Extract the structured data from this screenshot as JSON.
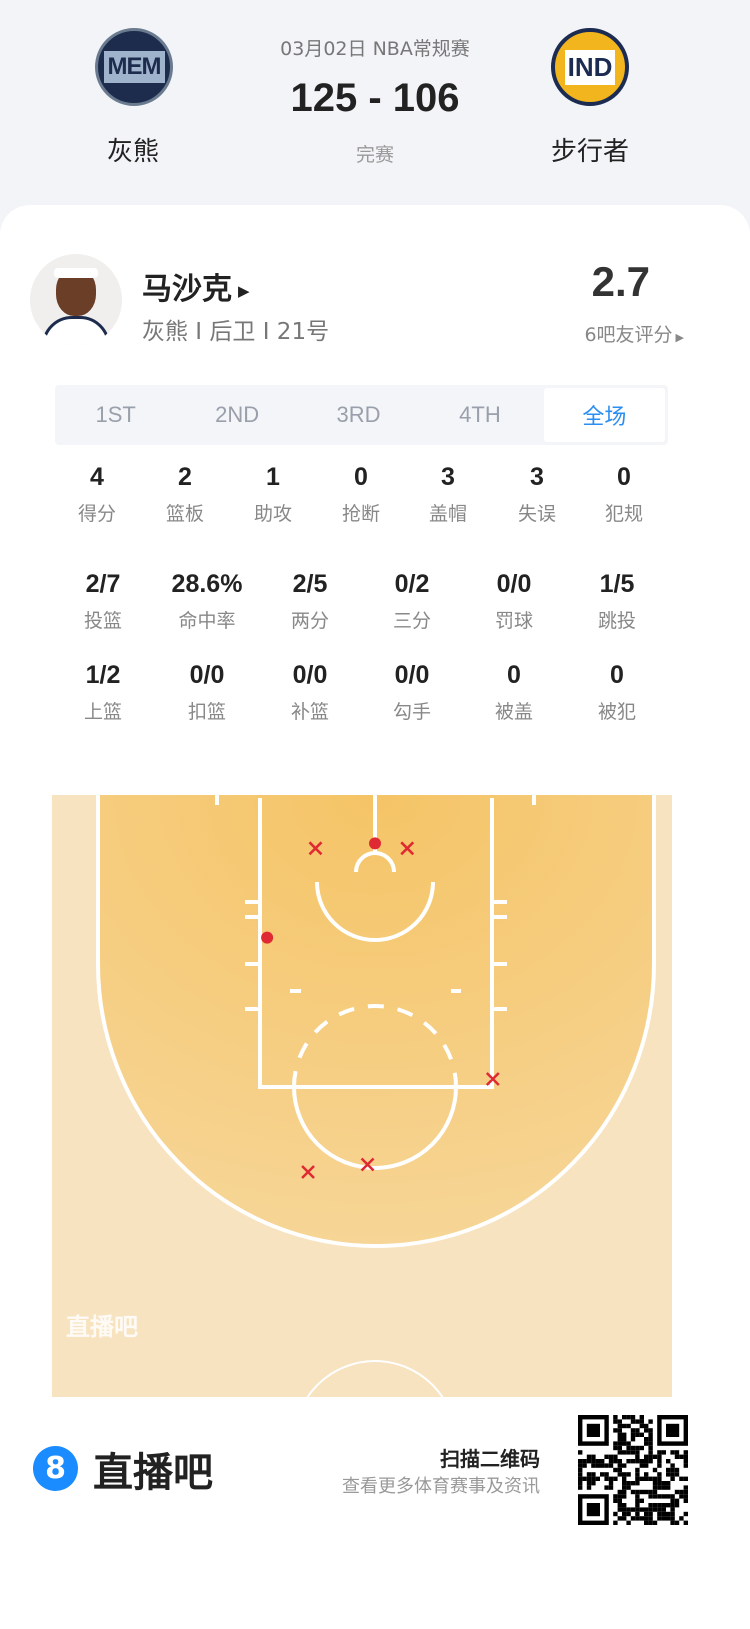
{
  "match": {
    "date_type": "03月02日 NBA常规赛",
    "score": "125 - 106",
    "status": "完赛",
    "home": {
      "logo_text": "MEM",
      "name": "灰熊"
    },
    "away": {
      "logo_text": "IND",
      "name": "步行者"
    }
  },
  "player": {
    "name": "马沙克",
    "info": "灰熊 I 后卫 I 21号",
    "rating": "2.7",
    "rating_label": "6吧友评分"
  },
  "tabs": [
    {
      "label": "1ST"
    },
    {
      "label": "2ND"
    },
    {
      "label": "3RD"
    },
    {
      "label": "4TH"
    },
    {
      "label": "全场",
      "active": true
    }
  ],
  "stats_row1": [
    {
      "v": "4",
      "l": "得分"
    },
    {
      "v": "2",
      "l": "篮板"
    },
    {
      "v": "1",
      "l": "助攻"
    },
    {
      "v": "0",
      "l": "抢断"
    },
    {
      "v": "3",
      "l": "盖帽"
    },
    {
      "v": "3",
      "l": "失误"
    },
    {
      "v": "0",
      "l": "犯规"
    }
  ],
  "stats_row2": [
    {
      "v": "2/7",
      "l": "投篮"
    },
    {
      "v": "28.6%",
      "l": "命中率"
    },
    {
      "v": "2/5",
      "l": "两分"
    },
    {
      "v": "0/2",
      "l": "三分"
    },
    {
      "v": "0/0",
      "l": "罚球"
    },
    {
      "v": "1/5",
      "l": "跳投"
    }
  ],
  "stats_row3": [
    {
      "v": "1/2",
      "l": "上篮"
    },
    {
      "v": "0/0",
      "l": "扣篮"
    },
    {
      "v": "0/0",
      "l": "补篮"
    },
    {
      "v": "0/0",
      "l": "勾手"
    },
    {
      "v": "0",
      "l": "被盖"
    },
    {
      "v": "0",
      "l": "被犯"
    }
  ],
  "shot_chart": {
    "watermark": "直播吧",
    "made_color": "#e02a33",
    "miss_color": "#e02a33",
    "shots_feet_from_center_baseline": [
      {
        "x": -4.8,
        "y": 4.3,
        "made": false
      },
      {
        "x": 0,
        "y": 3.9,
        "made": true
      },
      {
        "x": 2.6,
        "y": 4.3,
        "made": false
      },
      {
        "x": -8.7,
        "y": 11.5,
        "made": true
      },
      {
        "x": 9.5,
        "y": 22.9,
        "made": false
      },
      {
        "x": -5.4,
        "y": 30.4,
        "made": false
      },
      {
        "x": -0.6,
        "y": 29.8,
        "made": false
      }
    ]
  },
  "footer": {
    "brand_icon": "8",
    "brand": "直播吧",
    "scan_title": "扫描二维码",
    "scan_sub": "查看更多体育赛事及资讯",
    "brand_color": "#1a8cff"
  }
}
